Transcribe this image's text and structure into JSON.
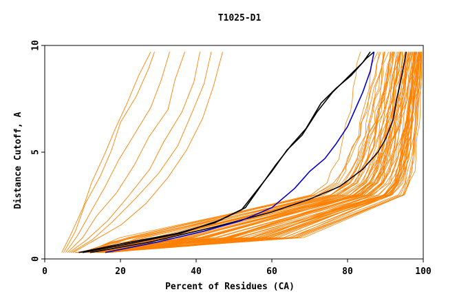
{
  "chart_data": {
    "type": "line",
    "title": "T1025-D1",
    "xlabel": "Percent of Residues (CA)",
    "ylabel": "Distance Cutoff, A",
    "xlim": [
      0,
      100
    ],
    "ylim": [
      0,
      10
    ],
    "xticks": [
      0,
      20,
      40,
      60,
      80,
      100
    ],
    "yticks": [
      0,
      5,
      10
    ],
    "grid": false,
    "legend": "none",
    "colors": {
      "orange": "#ff8000",
      "black": "#000000",
      "blue": "#0000cc"
    },
    "black_series": [
      {
        "x": [
          9,
          20,
          35,
          45,
          52,
          56,
          60,
          64,
          68,
          72,
          76,
          80,
          84,
          86
        ],
        "y": [
          0.3,
          0.7,
          1.2,
          1.7,
          2.3,
          3.2,
          4.1,
          5.1,
          5.8,
          6.9,
          7.8,
          8.5,
          9.2,
          9.7
        ]
      },
      {
        "x": [
          10,
          22,
          36,
          46,
          53,
          57,
          61,
          65,
          69,
          73,
          77,
          81,
          85,
          87
        ],
        "y": [
          0.3,
          0.7,
          1.2,
          1.8,
          2.4,
          3.4,
          4.4,
          5.3,
          6.1,
          7.3,
          8.0,
          8.6,
          9.4,
          9.7
        ]
      },
      {
        "x": [
          12,
          28,
          45,
          60,
          70,
          78,
          84,
          88,
          90,
          92,
          93,
          94,
          95,
          95.5
        ],
        "y": [
          0.3,
          0.8,
          1.5,
          2.2,
          2.8,
          3.4,
          4.2,
          5.0,
          5.6,
          6.5,
          7.5,
          8.3,
          9.2,
          9.7
        ]
      }
    ],
    "blue_series": [
      {
        "x": [
          16,
          30,
          42,
          52,
          60,
          66,
          70,
          74,
          77,
          80,
          82,
          84,
          86,
          87
        ],
        "y": [
          0.3,
          0.8,
          1.3,
          1.8,
          2.4,
          3.3,
          4.1,
          4.7,
          5.4,
          6.2,
          7.0,
          7.8,
          8.8,
          9.7
        ]
      }
    ],
    "orange_left_series": [
      {
        "x": [
          4.5,
          7,
          10,
          13,
          16,
          19,
          22,
          25,
          28
        ],
        "y": [
          0.3,
          1.2,
          2.4,
          3.6,
          4.9,
          6.1,
          7.3,
          8.6,
          9.7
        ]
      },
      {
        "x": [
          5,
          8,
          11,
          14,
          17,
          20,
          24,
          27,
          29
        ],
        "y": [
          0.3,
          1.3,
          2.6,
          3.9,
          5.1,
          6.4,
          7.6,
          8.9,
          9.7
        ]
      },
      {
        "x": [
          5.5,
          9,
          12,
          16,
          20,
          24,
          28,
          31,
          33
        ],
        "y": [
          0.3,
          1.1,
          2.2,
          3.4,
          4.6,
          5.9,
          7.1,
          8.4,
          9.7
        ]
      },
      {
        "x": [
          6,
          10,
          14,
          19,
          24,
          28,
          32,
          35,
          37
        ],
        "y": [
          0.3,
          1.0,
          2.0,
          3.1,
          4.4,
          5.7,
          7.0,
          8.4,
          9.7
        ]
      },
      {
        "x": [
          6.5,
          11,
          16,
          22,
          27,
          32,
          36,
          39,
          41
        ],
        "y": [
          0.3,
          0.9,
          1.8,
          2.9,
          4.2,
          5.5,
          6.9,
          8.3,
          9.7
        ]
      },
      {
        "x": [
          7,
          12,
          18,
          24,
          30,
          35,
          39,
          42,
          44
        ],
        "y": [
          0.3,
          0.9,
          1.7,
          2.8,
          4.0,
          5.3,
          6.7,
          8.2,
          9.7
        ]
      },
      {
        "x": [
          7.5,
          13,
          20,
          27,
          33,
          38,
          42,
          45,
          47
        ],
        "y": [
          0.3,
          0.8,
          1.6,
          2.6,
          3.8,
          5.1,
          6.6,
          8.1,
          9.7
        ]
      }
    ],
    "orange_bundle_series": {
      "x_pct_range": [
        0.32,
        0.47
      ],
      "x_at_2pct": [
        73,
        92.5
      ],
      "x_at_10pct": [
        84,
        99.5
      ],
      "x_at_y3": [
        70,
        93
      ],
      "x_at_y1": [
        22,
        68
      ],
      "count": 75
    }
  }
}
